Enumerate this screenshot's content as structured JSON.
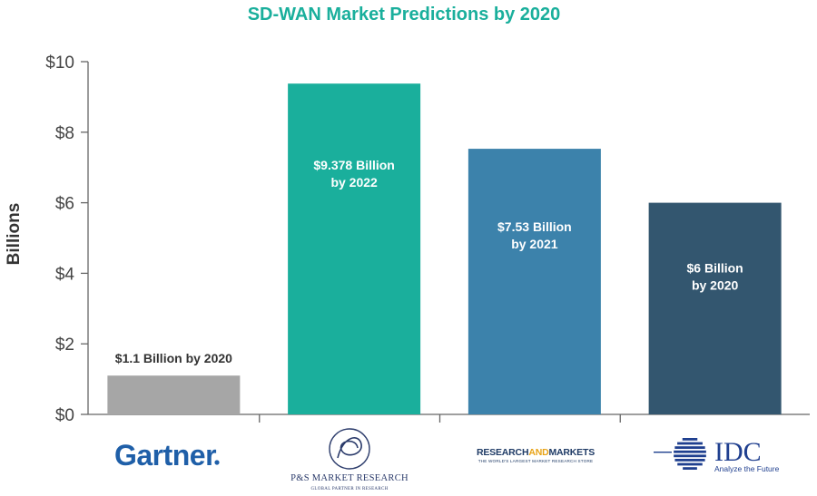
{
  "chart_data": {
    "type": "bar",
    "title": "SD-WAN Market Predictions by 2020",
    "ylabel": "Billions",
    "xlabel": "",
    "ylim": [
      0,
      10
    ],
    "yticks": [
      "$0",
      "$2",
      "$4",
      "$6",
      "$8",
      "$10"
    ],
    "ytick_values": [
      0,
      2,
      4,
      6,
      8,
      10
    ],
    "grid": false,
    "bars": [
      {
        "source": "Gartner",
        "value": 1.1,
        "label_lines": [
          "$1.1 Billion by 2020"
        ],
        "label_position": "above",
        "color": "#a6a6a6",
        "label_color": "#333333"
      },
      {
        "source": "P&S Market Research",
        "value": 9.378,
        "label_lines": [
          "$9.378 Billion",
          "by 2022"
        ],
        "label_position": "inside",
        "color": "#1aaf9c",
        "label_color": "#ffffff"
      },
      {
        "source": "Research and Markets",
        "value": 7.53,
        "label_lines": [
          "$7.53 Billion",
          "by 2021"
        ],
        "label_position": "inside",
        "color": "#3c82ab",
        "label_color": "#ffffff"
      },
      {
        "source": "IDC",
        "value": 6,
        "label_lines": [
          "$6 Billion",
          "by 2020"
        ],
        "label_position": "inside",
        "color": "#33566f",
        "label_color": "#ffffff"
      }
    ]
  },
  "colors": {
    "title": "#1aaf9c",
    "axis": "#666666"
  },
  "logos": {
    "gartner": {
      "text": "Gartner",
      "color": "#1f5fa8"
    },
    "ps": {
      "line1": "P&S MARKET RESEARCH",
      "line2": "GLOBAL PARTNER IN RESEARCH",
      "color": "#2a3a6a"
    },
    "research_markets": {
      "word1": "RESEARCH",
      "word2": "AND",
      "word3": "MARKETS",
      "tagline": "THE WORLD'S LARGEST MARKET RESEARCH STORE",
      "color": "#1f3b66",
      "accent": "#e8a317"
    },
    "idc": {
      "text": "IDC",
      "tagline": "Analyze the Future",
      "color": "#1f3f8f"
    }
  }
}
